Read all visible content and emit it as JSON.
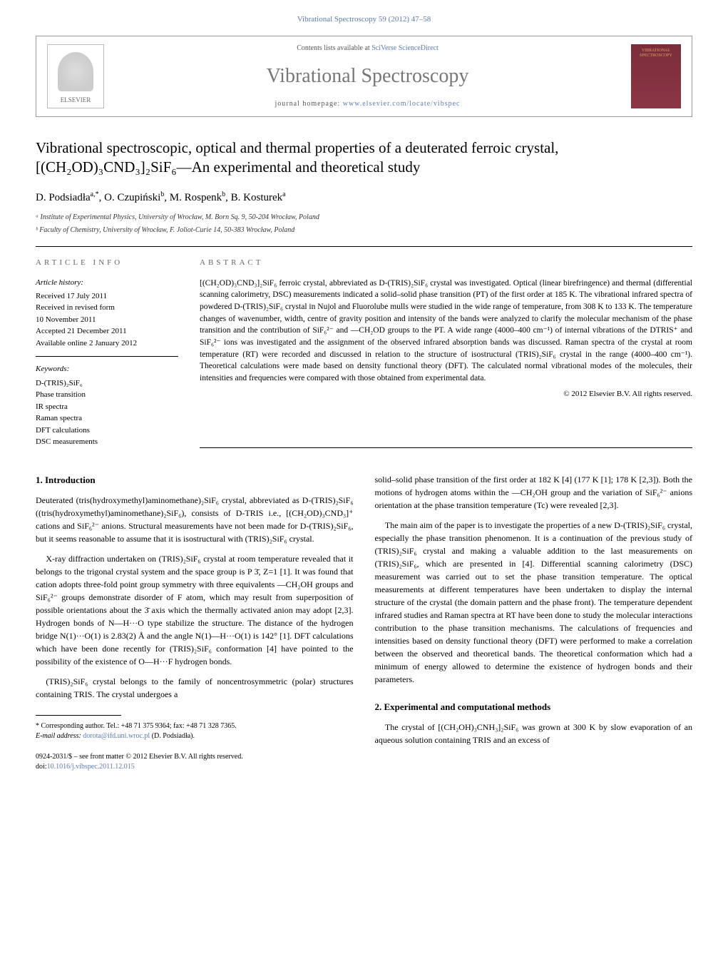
{
  "header": {
    "top_link": "Vibrational Spectroscopy 59 (2012) 47–58",
    "contents_prefix": "Contents lists available at ",
    "contents_link": "SciVerse ScienceDirect",
    "journal_title": "Vibrational Spectroscopy",
    "homepage_prefix": "journal homepage: ",
    "homepage_link": "www.elsevier.com/locate/vibspec",
    "elsevier_label": "ELSEVIER",
    "cover_text": "VIBRATIONAL SPECTROSCOPY"
  },
  "article": {
    "title": "Vibrational spectroscopic, optical and thermal properties of a deuterated ferroic crystal, [(CH₂OD)₃CND₃]₂SiF₆—An experimental and theoretical study",
    "authors_html": "D. Podsiadła<sup>a,*</sup>, O. Czupiński<sup>b</sup>, M. Rospenk<sup>b</sup>, B. Kosturek<sup>a</sup>",
    "affiliations": [
      "ᵃ Institute of Experimental Physics, University of Wrocław, M. Born Sq. 9, 50-204 Wrocław, Poland",
      "ᵇ Faculty of Chemistry, University of Wrocław, F. Joliot-Curie 14, 50-383 Wrocław, Poland"
    ]
  },
  "info": {
    "heading": "ARTICLE INFO",
    "history_label": "Article history:",
    "history": [
      "Received 17 July 2011",
      "Received in revised form",
      "10 November 2011",
      "Accepted 21 December 2011",
      "Available online 2 January 2012"
    ],
    "keywords_label": "Keywords:",
    "keywords": [
      "D-(TRIS)₂SiF₆",
      "Phase transition",
      "IR spectra",
      "Raman spectra",
      "DFT calculations",
      "DSC measurements"
    ]
  },
  "abstract": {
    "heading": "ABSTRACT",
    "text": "[(CH₂OD)₃CND₃]₂SiF₆ ferroic crystal, abbreviated as D-(TRIS)₂SiF₆ crystal was investigated. Optical (linear birefringence) and thermal (differential scanning calorimetry, DSC) measurements indicated a solid–solid phase transition (PT) of the first order at 185 K. The vibrational infrared spectra of powdered D-(TRIS)₂SiF₆ crystal in Nujol and Fluorolube mulls were studied in the wide range of temperature, from 308 K to 133 K. The temperature changes of wavenumber, width, centre of gravity position and intensity of the bands were analyzed to clarify the molecular mechanism of the phase transition and the contribution of SiF₆²⁻ and —CH₂OD groups to the PT. A wide range (4000–400 cm⁻¹) of internal vibrations of the DTRIS⁺ and SiF₆²⁻ ions was investigated and the assignment of the observed infrared absorption bands was discussed. Raman spectra of the crystal at room temperature (RT) were recorded and discussed in relation to the structure of isostructural (TRIS)₂SiF₆ crystal in the range (4000–400 cm⁻¹). Theoretical calculations were made based on density functional theory (DFT). The calculated normal vibrational modes of the molecules, their intensities and frequencies were compared with those obtained from experimental data.",
    "copyright": "© 2012 Elsevier B.V. All rights reserved."
  },
  "body": {
    "section1_heading": "1. Introduction",
    "col1_p1": "Deuterated (tris(hydroxymethyl)aminomethane)₂SiF₆ crystal, abbreviated as D-(TRIS)₂SiF₆ ((tris(hydroxymethyl)aminomethane)₂SiF₆), consists of D-TRIS i.e., [(CH₂OD)₃CND₃]⁺ cations and SiF₆²⁻ anions. Structural measurements have not been made for D-(TRIS)₂SiF₆, but it seems reasonable to assume that it is isostructural with (TRIS)₂SiF₆ crystal.",
    "col1_p2": "X-ray diffraction undertaken on (TRIS)₂SiF₆ crystal at room temperature revealed that it belongs to the trigonal crystal system and the space group is P 3̄, Z=1 [1]. It was found that cation adopts three-fold point group symmetry with three equivalents —CH₂OH groups and SiF₆²⁻ groups demonstrate disorder of F atom, which may result from superposition of possible orientations about the 3̄ axis which the thermally activated anion may adopt [2,3]. Hydrogen bonds of N—H···O type stabilize the structure. The distance of the hydrogen bridge N(1)···O(1) is 2.83(2) Å and the angle N(1)—H···O(1) is 142° [1]. DFT calculations which have been done recently for (TRIS)₂SiF₆ conformation [4] have pointed to the possibility of the existence of O—H···F hydrogen bonds.",
    "col1_p3": "(TRIS)₂SiF₆ crystal belongs to the family of noncentrosymmetric (polar) structures containing TRIS. The crystal undergoes a",
    "col2_p1": "solid–solid phase transition of the first order at 182 K [4] (177 K [1]; 178 K [2,3]). Both the motions of hydrogen atoms within the —CH₂OH group and the variation of SiF₆²⁻ anions orientation at the phase transition temperature (Tc) were revealed [2,3].",
    "col2_p2": "The main aim of the paper is to investigate the properties of a new D-(TRIS)₂SiF₆ crystal, especially the phase transition phenomenon. It is a continuation of the previous study of (TRIS)₂SiF₆ crystal and making a valuable addition to the last measurements on (TRIS)₂SiF₆, which are presented in [4]. Differential scanning calorimetry (DSC) measurement was carried out to set the phase transition temperature. The optical measurements at different temperatures have been undertaken to display the internal structure of the crystal (the domain pattern and the phase front). The temperature dependent infrared studies and Raman spectra at RT have been done to study the molecular interactions contribution to the phase transition mechanisms. The calculations of frequencies and intensities based on density functional theory (DFT) were performed to make a correlation between the observed and theoretical bands. The theoretical conformation which had a minimum of energy allowed to determine the existence of hydrogen bonds and their parameters.",
    "section2_heading": "2. Experimental and computational methods",
    "col2_p3": "The crystal of [(CH₂OH)₃CNH₃]₂SiF₆ was grown at 300 K by slow evaporation of an aqueous solution containing TRIS and an excess of"
  },
  "footnote": {
    "corr_label": "* Corresponding author. Tel.: +48 71 375 9364; fax: +48 71 328 7365.",
    "email_label": "E-mail address: ",
    "email": "dorota@ifd.uni.wroc.pl",
    "email_suffix": " (D. Podsiadła)."
  },
  "footer": {
    "issn": "0924-2031/$ – see front matter © 2012 Elsevier B.V. All rights reserved.",
    "doi_label": "doi:",
    "doi": "10.1016/j.vibspec.2011.12.015"
  },
  "colors": {
    "link": "#5b7ab5",
    "cover_bg": "#7b2d3a",
    "cover_text": "#d4a85a",
    "journal_title": "#777777"
  }
}
